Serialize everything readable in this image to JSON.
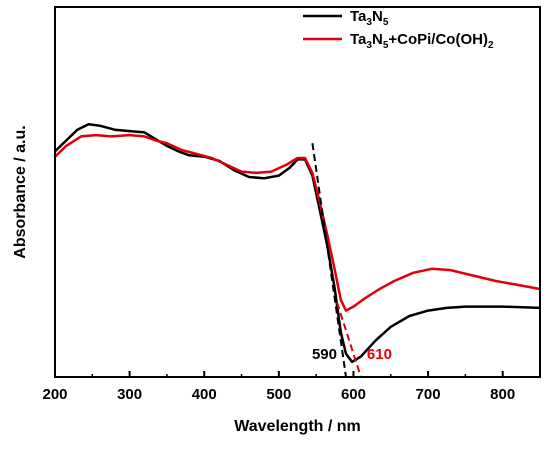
{
  "chart_data": {
    "type": "line",
    "title": "",
    "xlabel": "Wavelength / nm",
    "ylabel": "Absorbance / a.u.",
    "xlim": [
      200,
      850
    ],
    "ylim": [
      0,
      1
    ],
    "x_ticks": [
      200,
      300,
      400,
      500,
      600,
      700,
      800
    ],
    "y_ticks_shown": false,
    "grid": false,
    "legend": {
      "placement": "top-right",
      "entries": [
        {
          "base": "Ta",
          "s1": "3",
          "mid1": "N",
          "s2": "5",
          "rest": "",
          "s3": ""
        },
        {
          "base": "Ta",
          "s1": "3",
          "mid1": "N",
          "s2": "5",
          "rest": "+CoPi/Co(OH)",
          "s3": "2"
        }
      ]
    },
    "series": [
      {
        "name": "Ta3N5",
        "color": "#000000",
        "points": [
          [
            200,
            0.81
          ],
          [
            215,
            0.85
          ],
          [
            230,
            0.89
          ],
          [
            245,
            0.91
          ],
          [
            260,
            0.905
          ],
          [
            280,
            0.89
          ],
          [
            300,
            0.885
          ],
          [
            320,
            0.88
          ],
          [
            335,
            0.855
          ],
          [
            350,
            0.83
          ],
          [
            365,
            0.81
          ],
          [
            380,
            0.795
          ],
          [
            400,
            0.79
          ],
          [
            420,
            0.775
          ],
          [
            440,
            0.74
          ],
          [
            460,
            0.715
          ],
          [
            480,
            0.71
          ],
          [
            500,
            0.72
          ],
          [
            515,
            0.75
          ],
          [
            525,
            0.78
          ],
          [
            535,
            0.78
          ],
          [
            545,
            0.72
          ],
          [
            555,
            0.59
          ],
          [
            565,
            0.46
          ],
          [
            575,
            0.3
          ],
          [
            583,
            0.14
          ],
          [
            590,
            0.06
          ],
          [
            598,
            0.03
          ],
          [
            610,
            0.05
          ],
          [
            630,
            0.11
          ],
          [
            650,
            0.16
          ],
          [
            675,
            0.2
          ],
          [
            700,
            0.22
          ],
          [
            725,
            0.23
          ],
          [
            750,
            0.235
          ],
          [
            800,
            0.235
          ],
          [
            850,
            0.23
          ]
        ]
      },
      {
        "name": "Ta3N5+CoPi/Co(OH)2",
        "color": "#e0000a",
        "points": [
          [
            200,
            0.79
          ],
          [
            215,
            0.83
          ],
          [
            235,
            0.865
          ],
          [
            255,
            0.87
          ],
          [
            275,
            0.865
          ],
          [
            300,
            0.87
          ],
          [
            320,
            0.865
          ],
          [
            335,
            0.85
          ],
          [
            350,
            0.84
          ],
          [
            370,
            0.815
          ],
          [
            390,
            0.8
          ],
          [
            410,
            0.785
          ],
          [
            430,
            0.76
          ],
          [
            450,
            0.735
          ],
          [
            470,
            0.73
          ],
          [
            490,
            0.735
          ],
          [
            510,
            0.76
          ],
          [
            525,
            0.785
          ],
          [
            535,
            0.785
          ],
          [
            545,
            0.73
          ],
          [
            555,
            0.62
          ],
          [
            565,
            0.5
          ],
          [
            575,
            0.37
          ],
          [
            583,
            0.26
          ],
          [
            590,
            0.22
          ],
          [
            600,
            0.235
          ],
          [
            615,
            0.265
          ],
          [
            635,
            0.3
          ],
          [
            655,
            0.33
          ],
          [
            680,
            0.36
          ],
          [
            705,
            0.375
          ],
          [
            730,
            0.37
          ],
          [
            760,
            0.35
          ],
          [
            790,
            0.33
          ],
          [
            820,
            0.315
          ],
          [
            850,
            0.3
          ]
        ]
      }
    ],
    "tangents": [
      {
        "color": "#000000",
        "x_intercept": 590,
        "label": "590",
        "from": [
          545,
          0.84
        ],
        "to": [
          590,
          0.0
        ]
      },
      {
        "color": "#e0000a",
        "x_intercept": 610,
        "label": "610",
        "from": [
          578,
          0.25
        ],
        "to": [
          610,
          0.0
        ]
      }
    ]
  }
}
